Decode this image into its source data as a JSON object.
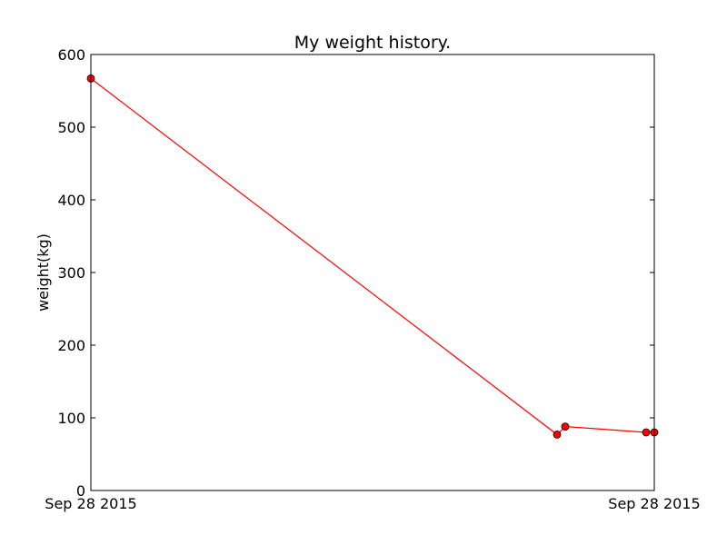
{
  "chart_data": {
    "type": "line",
    "title": "My weight history.",
    "xlabel": "",
    "ylabel": "weight(kg)",
    "ylim": [
      0,
      600
    ],
    "yticks": [
      0,
      100,
      200,
      300,
      400,
      500,
      600
    ],
    "xtick_labels": [
      "Sep 28 2015",
      "Sep 28 2015"
    ],
    "grid": false,
    "legend": "none",
    "series": [
      {
        "x": [
          0.0,
          0.8274,
          0.8419,
          0.9855,
          1.0
        ],
        "y": [
          567,
          77,
          88,
          80,
          80
        ],
        "color": "#ff0000",
        "marker": "circle"
      }
    ]
  }
}
